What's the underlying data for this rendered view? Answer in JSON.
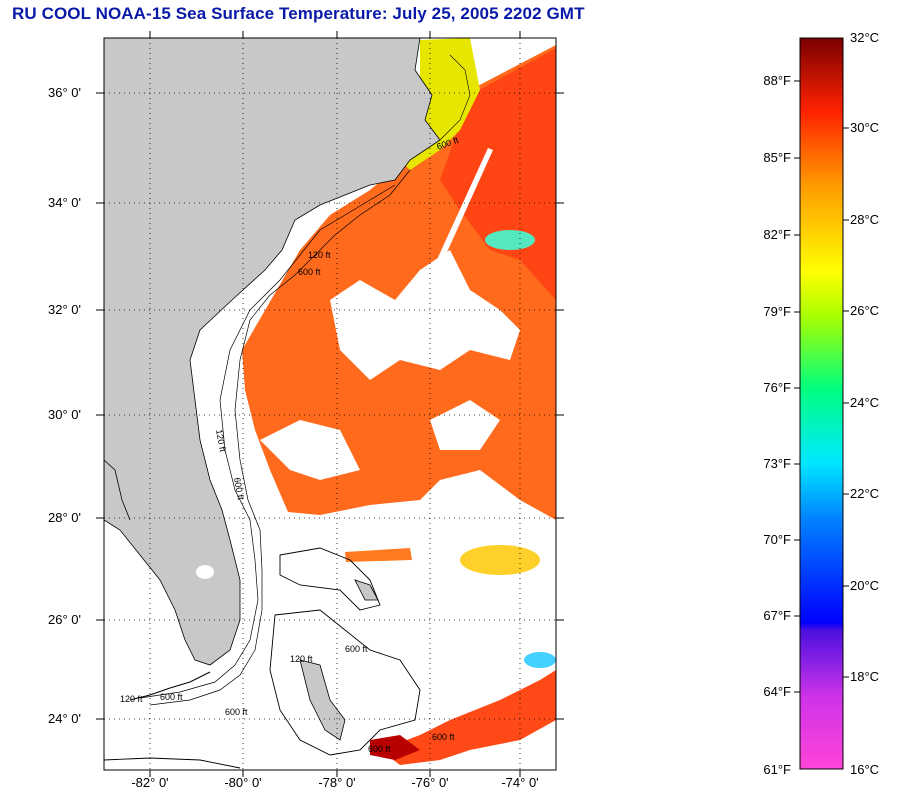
{
  "title": "RU COOL  NOAA-15  Sea Surface Temperature:  July 25, 2005 2202 GMT",
  "map": {
    "lat_labels": [
      "36° 0'",
      "34° 0'",
      "32° 0'",
      "30° 0'",
      "28° 0'",
      "26° 0'",
      "24° 0'"
    ],
    "lon_labels": [
      "-82° 0'",
      "-80° 0'",
      "-78° 0'",
      "-76° 0'",
      "-74° 0'"
    ],
    "contour_labels": [
      "120 ft",
      "600 ft",
      "600 ft",
      "120 ft",
      "600 ft",
      "600 ft",
      "120 ft",
      "600 ft",
      "600 ft",
      "600 ft",
      "120 ft",
      "600 ft"
    ],
    "land_color": "#c8c8c8",
    "cloud_color": "#ffffff"
  },
  "colorbar": {
    "celsius_labels": [
      "32°C",
      "30°C",
      "28°C",
      "26°C",
      "24°C",
      "22°C",
      "20°C",
      "18°C",
      "16°C"
    ],
    "fahrenheit_labels": [
      "88°F",
      "85°F",
      "82°F",
      "79°F",
      "76°F",
      "73°F",
      "70°F",
      "67°F",
      "64°F",
      "61°F"
    ],
    "range_c": [
      16,
      32
    ],
    "colors": [
      "#ff44d8",
      "#8a33e0",
      "#0000ff",
      "#00c8ff",
      "#00ff80",
      "#ffff00",
      "#ff9900",
      "#ff2200",
      "#8b0000"
    ]
  }
}
